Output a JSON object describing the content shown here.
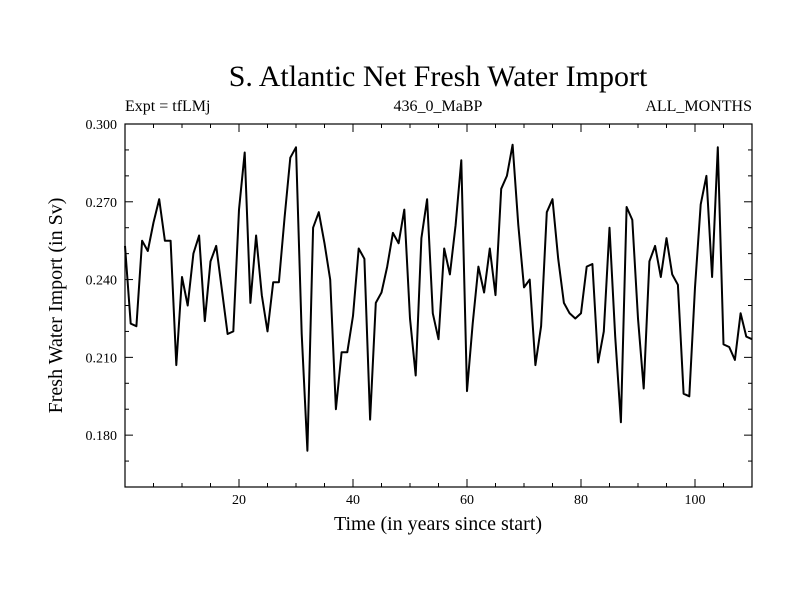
{
  "chart_data": {
    "type": "line",
    "title": "S. Atlantic Net Fresh Water Import",
    "subtitle_left": "Expt = tfLMj",
    "subtitle_center": "436_0_MaBP",
    "subtitle_right": "ALL_MONTHS",
    "xlabel": "Time (in years since start)",
    "ylabel": "Fresh Water Import (in Sv)",
    "xlim": [
      0,
      110
    ],
    "ylim": [
      0.16,
      0.3
    ],
    "x_ticks": [
      20,
      40,
      60,
      80,
      100
    ],
    "x_tick_labels": [
      "20",
      "40",
      "60",
      "80",
      "100"
    ],
    "y_ticks": [
      0.18,
      0.21,
      0.24,
      0.27,
      0.3
    ],
    "y_tick_labels": [
      "0.180",
      "0.210",
      "0.240",
      "0.270",
      "0.300"
    ],
    "grid": false,
    "series": [
      {
        "name": "fresh water import",
        "color": "#000000",
        "x": [
          0,
          1,
          2,
          3,
          4,
          5,
          6,
          7,
          8,
          9,
          10,
          11,
          12,
          13,
          14,
          15,
          16,
          17,
          18,
          19,
          20,
          21,
          22,
          23,
          24,
          25,
          26,
          27,
          28,
          29,
          30,
          31,
          32,
          33,
          34,
          35,
          36,
          37,
          38,
          39,
          40,
          41,
          42,
          43,
          44,
          45,
          46,
          47,
          48,
          49,
          50,
          51,
          52,
          53,
          54,
          55,
          56,
          57,
          58,
          59,
          60,
          61,
          62,
          63,
          64,
          65,
          66,
          67,
          68,
          69,
          70,
          71,
          72,
          73,
          74,
          75,
          76,
          77,
          78,
          79,
          80,
          81,
          82,
          83,
          84,
          85,
          86,
          87,
          88,
          89,
          90,
          91,
          92,
          93,
          94,
          95,
          96,
          97,
          98,
          99,
          100,
          101,
          102,
          103,
          104,
          105,
          106,
          107,
          108,
          109,
          110
        ],
        "values": [
          0.253,
          0.223,
          0.222,
          0.255,
          0.251,
          0.262,
          0.271,
          0.255,
          0.255,
          0.207,
          0.241,
          0.23,
          0.25,
          0.257,
          0.224,
          0.247,
          0.253,
          0.236,
          0.219,
          0.22,
          0.267,
          0.289,
          0.231,
          0.257,
          0.234,
          0.22,
          0.239,
          0.239,
          0.264,
          0.287,
          0.291,
          0.219,
          0.174,
          0.26,
          0.266,
          0.254,
          0.24,
          0.19,
          0.212,
          0.212,
          0.226,
          0.252,
          0.248,
          0.186,
          0.231,
          0.235,
          0.245,
          0.258,
          0.254,
          0.267,
          0.225,
          0.203,
          0.256,
          0.271,
          0.227,
          0.217,
          0.252,
          0.242,
          0.261,
          0.286,
          0.197,
          0.223,
          0.245,
          0.235,
          0.252,
          0.234,
          0.275,
          0.28,
          0.292,
          0.261,
          0.237,
          0.24,
          0.207,
          0.222,
          0.266,
          0.271,
          0.248,
          0.231,
          0.227,
          0.225,
          0.227,
          0.245,
          0.246,
          0.208,
          0.22,
          0.26,
          0.218,
          0.185,
          0.268,
          0.263,
          0.225,
          0.198,
          0.247,
          0.253,
          0.241,
          0.256,
          0.242,
          0.238,
          0.196,
          0.195,
          0.237,
          0.269,
          0.28,
          0.241,
          0.291,
          0.215,
          0.214,
          0.209,
          0.227,
          0.218,
          0.217
        ]
      }
    ]
  }
}
